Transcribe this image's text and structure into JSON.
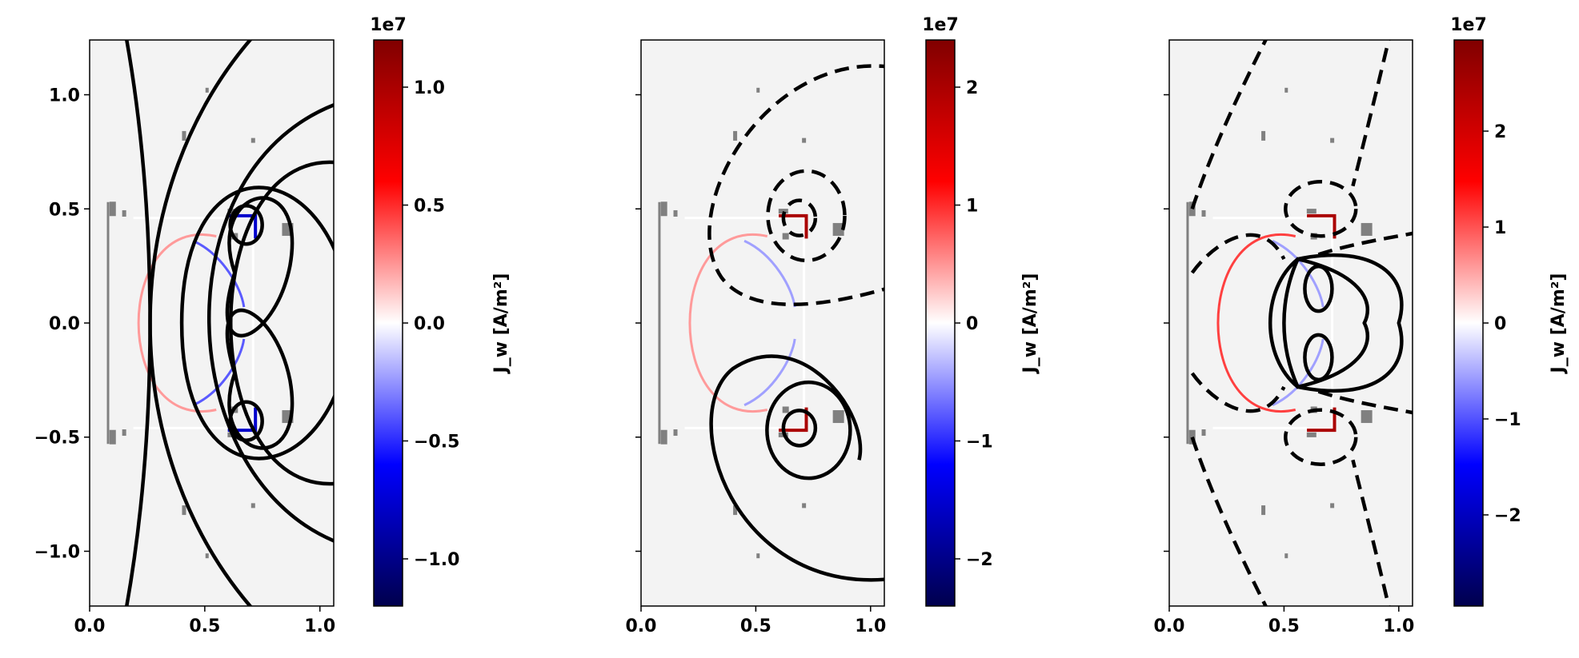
{
  "chart_data": [
    {
      "type": "contour",
      "panel": "left",
      "xlim": [
        0.0,
        1.06
      ],
      "ylim": [
        -1.24,
        1.24
      ],
      "x_ticks": [
        0.0,
        0.5,
        1.0
      ],
      "x_tick_labels": [
        "0.0",
        "0.5",
        "1.0"
      ],
      "y_ticks": [
        -1.0,
        -0.5,
        0.0,
        0.5,
        1.0
      ],
      "y_tick_labels": [
        "−1.0",
        "−0.5",
        "0.0",
        "0.5",
        "1.0"
      ],
      "contour_style": "solid",
      "colorbar": {
        "label": "J_w [A/m²]",
        "exponent_label": "1e7",
        "range": [
          -1.2,
          1.2
        ],
        "ticks": [
          -1.0,
          -0.5,
          0.0,
          0.5,
          1.0
        ],
        "tick_labels": [
          "−1.0",
          "−0.5",
          "0.0",
          "0.5",
          "1.0"
        ]
      }
    },
    {
      "type": "contour",
      "panel": "middle",
      "xlim": [
        0.0,
        1.06
      ],
      "ylim": [
        -1.24,
        1.24
      ],
      "x_ticks": [
        0.0,
        0.5,
        1.0
      ],
      "x_tick_labels": [
        "0.0",
        "0.5",
        "1.0"
      ],
      "y_ticks": [
        -1.0,
        -0.5,
        0.0,
        0.5,
        1.0
      ],
      "contour_style": "solid-and-dashed",
      "colorbar": {
        "label": "J_w [A/m²]",
        "exponent_label": "1e7",
        "range": [
          -2.4,
          2.4
        ],
        "ticks": [
          -2,
          -1,
          0,
          1,
          2
        ],
        "tick_labels": [
          "−2",
          "−1",
          "0",
          "1",
          "2"
        ]
      }
    },
    {
      "type": "contour",
      "panel": "right",
      "xlim": [
        0.0,
        1.06
      ],
      "ylim": [
        -1.24,
        1.24
      ],
      "x_ticks": [
        0.0,
        0.5,
        1.0
      ],
      "x_tick_labels": [
        "0.0",
        "0.5",
        "1.0"
      ],
      "y_ticks": [
        -1.0,
        -0.5,
        0.0,
        0.5,
        1.0
      ],
      "contour_style": "solid-and-dashed",
      "colorbar": {
        "label": "J_w [A/m²]",
        "exponent_label": "1e7",
        "range": [
          -2.95,
          2.95
        ],
        "ticks": [
          -2,
          -1,
          0,
          1,
          2
        ],
        "tick_labels": [
          "−2",
          "−1",
          "0",
          "1",
          "2"
        ]
      }
    }
  ],
  "colors": {
    "background": "#f3f3f3",
    "contour": "#000000",
    "wall_outline": "#ffffff",
    "coils": "#808080",
    "positive_current": "#ff0000",
    "negative_current": "#0000cc",
    "colormap": "seismic"
  }
}
